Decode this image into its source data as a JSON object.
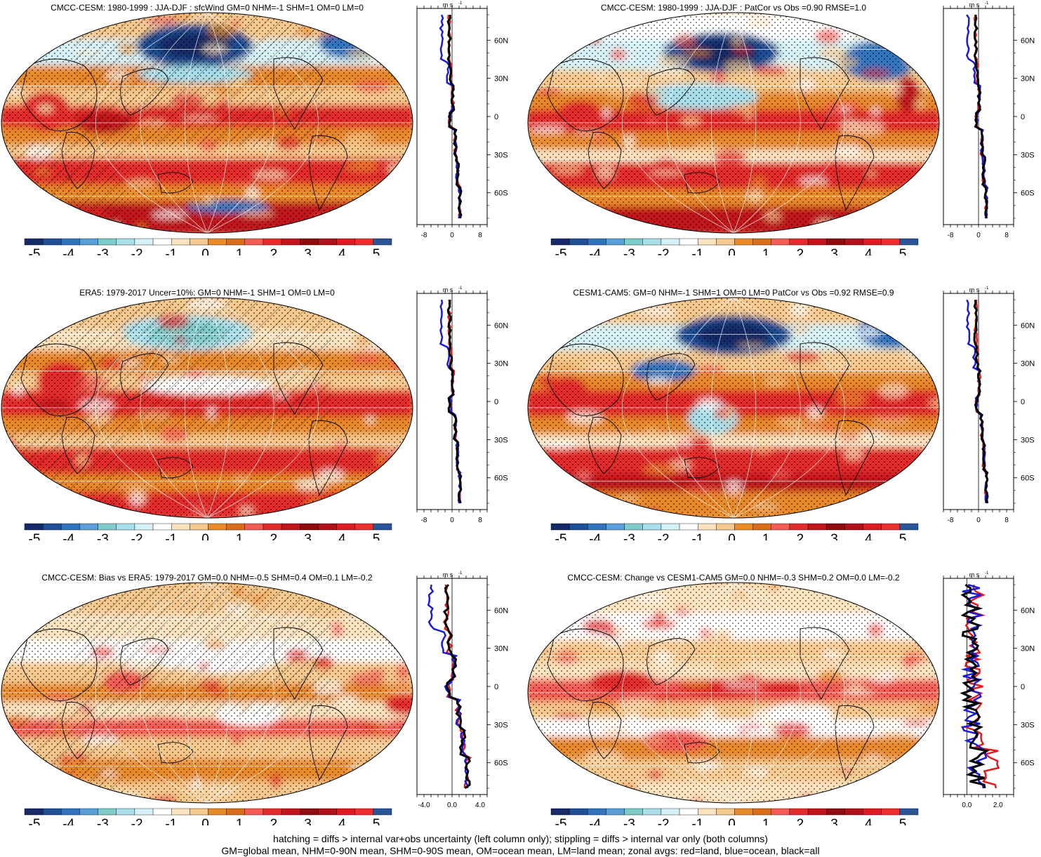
{
  "colorbar": {
    "colors": [
      "#162a67",
      "#1f4f95",
      "#3174bd",
      "#5a9ed8",
      "#7fcbc9",
      "#a9dfea",
      "#d6f1f6",
      "#ffffff",
      "#fbe3c0",
      "#f6c98e",
      "#e98a28",
      "#d86e1a",
      "#f35b54",
      "#e42c2c",
      "#c2141b",
      "#8e0b10",
      "#b0101a",
      "#de1a22",
      "#ee2f30",
      "#2a5597"
    ],
    "labels": [
      "-5",
      "-4",
      "-3",
      "-2",
      "-1",
      "0",
      "1",
      "2",
      "3",
      "4",
      "5"
    ]
  },
  "profile_axis": {
    "unit": "m s",
    "unit_sup": "-1",
    "lat_labels": [
      "60N",
      "30N",
      "0",
      "30S",
      "60S"
    ]
  },
  "panels": [
    {
      "title": "CMCC-CESM: 1980-1999 : JJA-DJF : sfcWind GM=0 NHM=-1 SHM=1 OM=0 LM=0",
      "xticks": [
        "-8",
        "0",
        "8"
      ],
      "hatch": true,
      "variant": 0
    },
    {
      "title": "CMCC-CESM: 1980-1999 : JJA-DJF : PatCor vs Obs =0.90 RMSE=1.0",
      "xticks": [
        "-8",
        "0",
        "8"
      ],
      "hatch": false,
      "variant": 1
    },
    {
      "title": "ERA5: 1979-2017 Uncer=10%: GM=0 NHM=-1 SHM=1 OM=0 LM=0",
      "xticks": [
        "-8",
        "0",
        "8"
      ],
      "hatch": true,
      "variant": 2
    },
    {
      "title": "CESM1-CAM5: GM=0 NHM=-1 SHM=1 OM=0 LM=0 PatCor vs Obs =0.92 RMSE=0.9",
      "xticks": [
        "-8",
        "0",
        "8"
      ],
      "hatch": false,
      "variant": 3
    },
    {
      "title": "CMCC-CESM: Bias vs ERA5: 1979-2017 GM=0.0 NHM=-0.5 SHM=0.4 OM=0.1 LM=-0.2",
      "xticks": [
        "-4.0",
        "0.0",
        "4.0"
      ],
      "hatch": true,
      "variant": 4
    },
    {
      "title": "CMCC-CESM: Change vs CESM1-CAM5 GM=0.0 NHM=-0.3 SHM=0.2 OM=0.0 LM=-0.2",
      "xticks": [
        "0.0",
        "2.0"
      ],
      "hatch": false,
      "variant": 5
    }
  ],
  "chart_data": [
    {
      "type": "heatmap",
      "title": "CMCC-CESM: 1980-1999 : JJA-DJF : sfcWind GM=0 NHM=-1 SHM=1 OM=0 LM=0",
      "colorbar_range": [
        -5,
        5
      ]
    },
    {
      "type": "line",
      "xlabel": "m s-1",
      "xlim": [
        -8,
        8
      ],
      "ylim": [
        -90,
        90
      ],
      "series": [
        {
          "name": "land",
          "color": "#e31a1c",
          "values": []
        },
        {
          "name": "ocean",
          "color": "#1a1adf",
          "values": []
        },
        {
          "name": "all",
          "color": "#000000",
          "values": []
        }
      ]
    }
  ],
  "footer": {
    "line1": "hatching = diffs > internal var+obs uncertainty (left column only); stippling = diffs > internal var only (both columns)",
    "line2": "GM=global mean, NHM=0-90N mean, SHM=0-90S mean, OM=ocean mean, LM=land mean; zonal avgs: red=land, blue=ocean, black=all"
  }
}
